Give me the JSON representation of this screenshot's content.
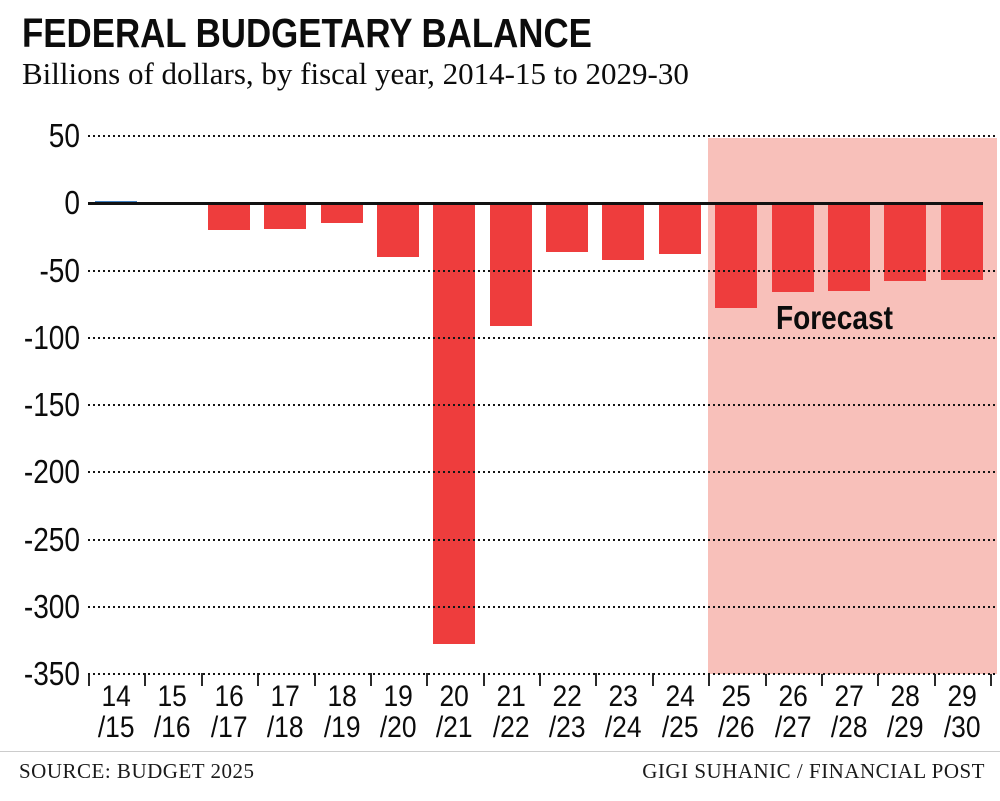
{
  "header": {
    "title": "FEDERAL BUDGETARY BALANCE",
    "subtitle": "Billions of dollars, by fiscal year, 2014-15 to 2029-30"
  },
  "chart_data": {
    "type": "bar",
    "title": "FEDERAL BUDGETARY BALANCE",
    "subtitle": "Billions of dollars, by fiscal year, 2014-15 to 2029-30",
    "unit": "billions of dollars",
    "categories": [
      "14/15",
      "15/16",
      "16/17",
      "17/18",
      "18/19",
      "19/20",
      "20/21",
      "21/22",
      "22/23",
      "23/24",
      "24/25",
      "25/26",
      "26/27",
      "27/28",
      "28/29",
      "29/30"
    ],
    "categories_two_line": [
      [
        "14",
        "/15"
      ],
      [
        "15",
        "/16"
      ],
      [
        "16",
        "/17"
      ],
      [
        "17",
        "/18"
      ],
      [
        "18",
        "/19"
      ],
      [
        "19",
        "/20"
      ],
      [
        "20",
        "/21"
      ],
      [
        "21",
        "/22"
      ],
      [
        "22",
        "/23"
      ],
      [
        "23",
        "/24"
      ],
      [
        "24",
        "/25"
      ],
      [
        "25",
        "/26"
      ],
      [
        "26",
        "/27"
      ],
      [
        "27",
        "/28"
      ],
      [
        "28",
        "/29"
      ],
      [
        "29",
        "/30"
      ]
    ],
    "values": [
      2,
      -1,
      -20,
      -19,
      -15,
      -40,
      -328,
      -91,
      -36,
      -42,
      -38,
      -78,
      -66,
      -65,
      -58,
      -57
    ],
    "ylim": [
      -350,
      50
    ],
    "yticks": [
      50,
      0,
      -50,
      -100,
      -150,
      -200,
      -250,
      -300,
      -350
    ],
    "gridlines": "dotted",
    "zero_axis": true,
    "forecast": {
      "label": "Forecast",
      "start_category": "25/26",
      "start_index": 11,
      "end_index": 15
    },
    "colors": {
      "positive_bar": "#3f7fc1",
      "negative_bar": "#ee3d3d",
      "forecast_band": "#f8c0ba",
      "axis_line": "#111111",
      "gridline_dots": "#141414"
    },
    "legend": "none"
  },
  "footer": {
    "source": "SOURCE: BUDGET 2025",
    "credit": "GIGI SUHANIC / FINANCIAL POST"
  }
}
